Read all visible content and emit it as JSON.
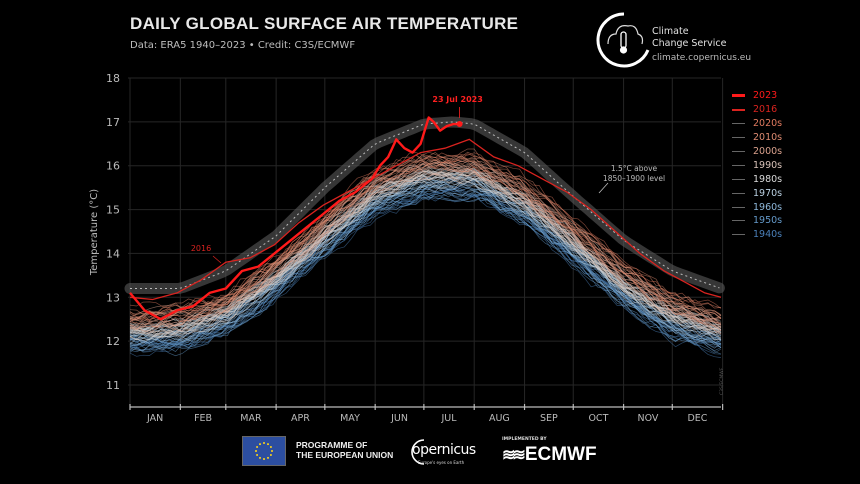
{
  "header": {
    "title": "DAILY GLOBAL SURFACE AIR TEMPERATURE",
    "subtitle": "Data: ERA5 1940–2023 • Credit: C3S/ECMWF"
  },
  "branding": {
    "service_name_line1": "Climate",
    "service_name_line2": "Change Service",
    "url": "climate.copernicus.eu",
    "eu_line1": "PROGRAMME OF",
    "eu_line2": "THE EUROPEAN UNION",
    "copernicus": "opernicus",
    "copernicus_tagline": "Europe's eyes on Earth",
    "implemented_by": "IMPLEMENTED BY",
    "ecmwf": "ECMWF"
  },
  "chart_data": {
    "type": "line",
    "title": "DAILY GLOBAL SURFACE AIR TEMPERATURE",
    "xlabel": "",
    "ylabel": "Temperature (°C)",
    "ylim": [
      11,
      18
    ],
    "xlim": [
      1,
      365
    ],
    "grid": true,
    "legend_position": "right",
    "y_ticks": [
      11,
      12,
      13,
      14,
      15,
      16,
      17,
      18
    ],
    "x_tick_labels": [
      "JAN",
      "FEB",
      "MAR",
      "APR",
      "MAY",
      "JUN",
      "JUL",
      "AUG",
      "SEP",
      "OCT",
      "NOV",
      "DEC"
    ],
    "x_month_start_days": [
      1,
      32,
      60,
      91,
      121,
      152,
      182,
      213,
      244,
      274,
      305,
      335,
      366
    ],
    "legend": [
      {
        "label": "2023",
        "color": "#ff1a1a",
        "weight": "bold"
      },
      {
        "label": "2016",
        "color": "#d9231f",
        "weight": "normal"
      },
      {
        "label": "2020s",
        "color": "#e07a5f"
      },
      {
        "label": "2010s",
        "color": "#dd8a70"
      },
      {
        "label": "2000s",
        "color": "#d9a08c"
      },
      {
        "label": "1990s",
        "color": "#d8c2b8"
      },
      {
        "label": "1980s",
        "color": "#d9d9d9"
      },
      {
        "label": "1970s",
        "color": "#b9cfe0"
      },
      {
        "label": "1960s",
        "color": "#8db6d8"
      },
      {
        "label": "1950s",
        "color": "#6499c9"
      },
      {
        "label": "1940s",
        "color": "#4a7fb8"
      }
    ],
    "threshold_band": {
      "label_line1": "1.5°C above",
      "label_line2": "1850–1900 level",
      "days": [
        1,
        32,
        60,
        91,
        121,
        152,
        182,
        200,
        213,
        244,
        274,
        305,
        335,
        365
      ],
      "values": [
        13.2,
        13.2,
        13.6,
        14.4,
        15.5,
        16.5,
        16.95,
        17.0,
        16.95,
        16.3,
        15.3,
        14.3,
        13.6,
        13.2
      ]
    },
    "series": [
      {
        "name": "2023",
        "days": [
          1,
          10,
          20,
          30,
          40,
          50,
          60,
          70,
          80,
          90,
          100,
          110,
          120,
          130,
          140,
          150,
          155,
          160,
          165,
          170,
          175,
          180,
          185,
          188,
          192,
          196,
          200,
          204
        ],
        "values": [
          13.1,
          12.7,
          12.5,
          12.7,
          12.8,
          13.1,
          13.2,
          13.6,
          13.7,
          14.0,
          14.3,
          14.6,
          14.9,
          15.2,
          15.4,
          15.7,
          16.0,
          16.2,
          16.6,
          16.4,
          16.3,
          16.5,
          17.1,
          17.0,
          16.8,
          16.9,
          16.95,
          16.95
        ]
      },
      {
        "name": "2016",
        "days": [
          1,
          15,
          30,
          45,
          60,
          75,
          90,
          105,
          120,
          135,
          150,
          165,
          180,
          195,
          210,
          225,
          240,
          255,
          270,
          285,
          300,
          315,
          330,
          345,
          355,
          365
        ],
        "values": [
          13.0,
          12.95,
          13.1,
          13.4,
          13.8,
          13.9,
          14.2,
          14.7,
          15.1,
          15.4,
          15.7,
          16.0,
          16.3,
          16.4,
          16.6,
          16.2,
          16.0,
          15.7,
          15.4,
          15.0,
          14.5,
          14.0,
          13.6,
          13.3,
          13.1,
          13.0
        ]
      }
    ],
    "annotations": [
      {
        "text": "23 Jul 2023",
        "day": 204,
        "value": 17.0
      },
      {
        "text": "2016",
        "day": 47,
        "value": 14.05
      }
    ],
    "decade_climatology_approx": {
      "days": [
        1,
        32,
        60,
        91,
        121,
        152,
        182,
        213,
        244,
        274,
        305,
        335,
        365
      ],
      "1940s_mean": [
        11.9,
        11.9,
        12.3,
        13.1,
        14.1,
        15.0,
        15.4,
        15.4,
        14.8,
        13.9,
        12.9,
        12.2,
        11.9
      ],
      "2020s_mean": [
        12.6,
        12.7,
        13.0,
        13.8,
        14.8,
        15.8,
        16.2,
        16.2,
        15.6,
        14.7,
        13.7,
        13.0,
        12.6
      ]
    },
    "watermark": "C3S/ECMWF"
  }
}
